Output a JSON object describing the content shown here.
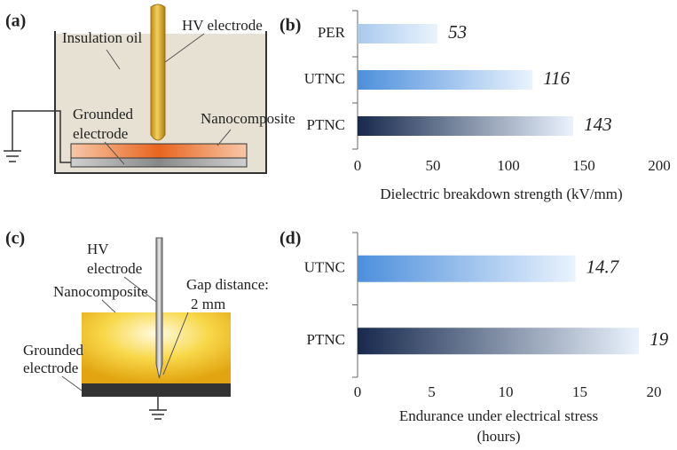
{
  "chart_data": [
    {
      "type": "bar",
      "orientation": "horizontal",
      "panel_label": "(b)",
      "categories": [
        "PER",
        "UTNC",
        "PTNC"
      ],
      "values": [
        53,
        116,
        143
      ],
      "colors": [
        "#a9c9ee",
        "#4d8fdc",
        "#17294d"
      ],
      "gradient_end": "#eaf3fd",
      "xlabel": [
        "Dielectric breakdown strength (kV/mm)"
      ],
      "xlim": [
        0,
        200
      ],
      "xticks": [
        0,
        50,
        100,
        150,
        200
      ]
    },
    {
      "type": "bar",
      "orientation": "horizontal",
      "panel_label": "(d)",
      "categories": [
        "UTNC",
        "PTNC"
      ],
      "values": [
        14.7,
        19
      ],
      "colors": [
        "#4d8fdc",
        "#17294d"
      ],
      "gradient_end": "#eaf3fd",
      "xlabel": [
        "Endurance under electrical stress",
        "(hours)"
      ],
      "xlim": [
        0,
        20
      ],
      "xticks": [
        0,
        5,
        10,
        15,
        20
      ]
    }
  ],
  "diagram_a": {
    "panel_label": "(a)",
    "labels": [
      "Insulation oil",
      "HV electrode",
      "Grounded",
      "electrode",
      "Nanocomposite"
    ]
  },
  "diagram_c": {
    "panel_label": "(c)",
    "labels": [
      "HV",
      "electrode",
      "Nanocomposite",
      "Gap distance:",
      "2 mm",
      "Grounded",
      "electrode"
    ]
  }
}
